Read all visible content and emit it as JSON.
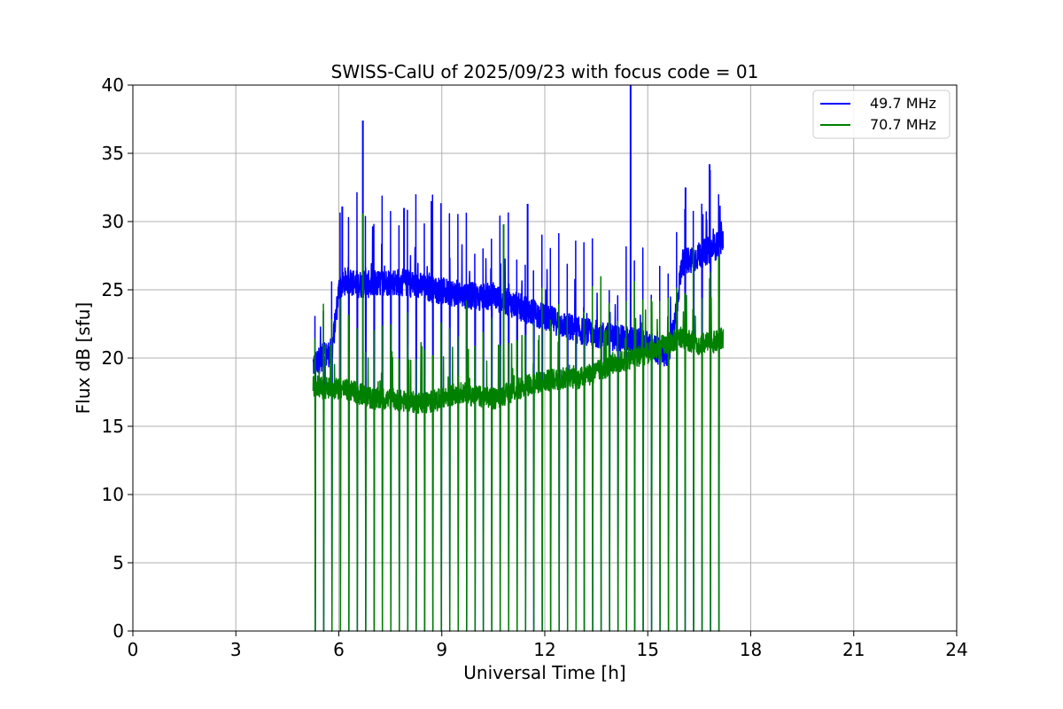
{
  "chart_data": {
    "type": "line",
    "title": "SWISS-CalU of 2025/09/23 with focus code = 01",
    "xlabel": "Universal Time [h]",
    "ylabel": "Flux dB [sfu]",
    "xlim": [
      0,
      24
    ],
    "ylim": [
      0,
      40
    ],
    "xticks": [
      0,
      3,
      6,
      9,
      12,
      15,
      18,
      21,
      24
    ],
    "yticks": [
      0,
      5,
      10,
      15,
      20,
      25,
      30,
      35,
      40
    ],
    "grid": true,
    "legend_position": "top-right",
    "calibration_spikes_to_zero": true,
    "series": [
      {
        "name": "49.7 MHz",
        "color": "#0000ff",
        "x": [
          5.25,
          5.5,
          5.8,
          6.0,
          6.2,
          6.6,
          7.0,
          7.5,
          8.0,
          8.5,
          9.0,
          9.5,
          10.0,
          10.5,
          11.0,
          11.5,
          12.0,
          12.5,
          13.0,
          13.5,
          14.0,
          14.5,
          15.0,
          15.3,
          15.6,
          15.8,
          16.0,
          16.5,
          17.0,
          17.2
        ],
        "values": [
          19.5,
          20.0,
          20.5,
          25.0,
          25.7,
          25.4,
          25.4,
          25.6,
          25.5,
          25.2,
          24.9,
          24.7,
          24.5,
          24.5,
          24.0,
          23.5,
          23.0,
          22.5,
          22.0,
          21.8,
          21.5,
          21.3,
          21.0,
          20.5,
          20.2,
          23.0,
          27.0,
          27.5,
          28.2,
          28.6
        ]
      },
      {
        "name": "70.7 MHz",
        "color": "#008000",
        "x": [
          5.25,
          5.5,
          6.0,
          6.5,
          7.0,
          7.5,
          8.0,
          8.5,
          9.0,
          9.5,
          10.0,
          10.5,
          11.0,
          11.5,
          12.0,
          12.5,
          13.0,
          13.5,
          14.0,
          14.5,
          15.0,
          15.5,
          16.0,
          16.5,
          17.0,
          17.2
        ],
        "values": [
          18.0,
          17.8,
          17.8,
          17.5,
          17.0,
          17.0,
          16.8,
          16.7,
          17.0,
          17.5,
          17.2,
          17.0,
          17.5,
          18.0,
          18.3,
          18.5,
          18.5,
          19.0,
          19.5,
          20.0,
          20.3,
          21.0,
          21.5,
          21.0,
          21.2,
          21.5
        ]
      }
    ],
    "peaks": [
      {
        "series": "49.7 MHz",
        "x": 6.1,
        "y": 31.1
      },
      {
        "series": "49.7 MHz",
        "x": 6.7,
        "y": 37.4
      },
      {
        "series": "49.7 MHz",
        "x": 7.9,
        "y": 31.0
      },
      {
        "series": "49.7 MHz",
        "x": 8.7,
        "y": 31.5
      },
      {
        "series": "49.7 MHz",
        "x": 11.5,
        "y": 31.3
      },
      {
        "series": "49.7 MHz",
        "x": 14.5,
        "y": 40.0
      },
      {
        "series": "49.7 MHz",
        "x": 16.1,
        "y": 32.5
      },
      {
        "series": "49.7 MHz",
        "x": 16.8,
        "y": 34.2
      },
      {
        "series": "70.7 MHz",
        "x": 6.7,
        "y": 30.6
      },
      {
        "series": "70.7 MHz",
        "x": 10.8,
        "y": 29.8
      }
    ]
  }
}
